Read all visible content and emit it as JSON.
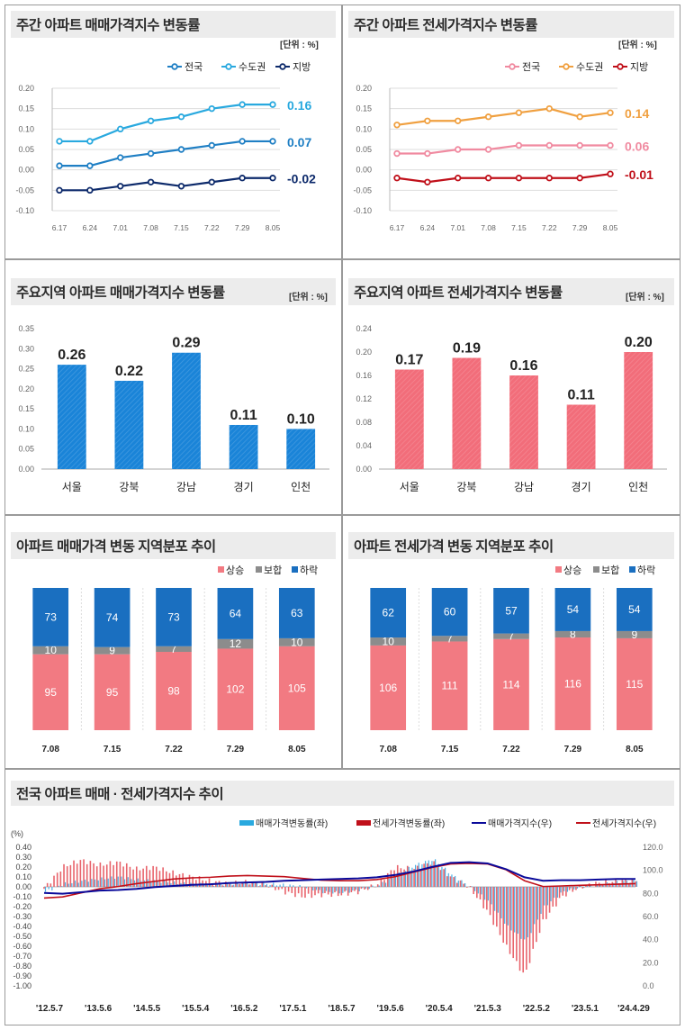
{
  "panels": {
    "p1": {
      "title": "주간 아파트 매매가격지수 변동률",
      "unit": "[단위 : %]"
    },
    "p2": {
      "title": "주간 아파트 전세가격지수 변동률",
      "unit": "[단위 : %]"
    },
    "p3": {
      "title": "주요지역 아파트 매매가격지수 변동률",
      "unit": "[단위 : %]"
    },
    "p4": {
      "title": "주요지역 아파트 전세가격지수 변동률",
      "unit": "[단위 : %]"
    },
    "p5": {
      "title": "아파트 매매가격 변동 지역분포 추이"
    },
    "p6": {
      "title": "아파트 전세가격 변동 지역분포 추이"
    },
    "p7": {
      "title": "전국 아파트 매매 · 전세가격지수 추이"
    }
  },
  "colors": {
    "sale_nat": "#1f7fc4",
    "sale_cap": "#29a9df",
    "sale_loc": "#0d2a6b",
    "rent_nat": "#f08aa0",
    "rent_cap": "#f0a040",
    "rent_loc": "#c0101a",
    "blue_bar": "#1a84d8",
    "red_bar": "#f26d7a",
    "up": "#f27a82",
    "flat": "#8c8c8c",
    "down": "#1a6fc0"
  },
  "chart_data": [
    {
      "id": "weekly_sale",
      "type": "line",
      "x": [
        "6.17",
        "6.24",
        "7.01",
        "7.08",
        "7.15",
        "7.22",
        "7.29",
        "8.05"
      ],
      "series": [
        {
          "name": "전국",
          "values": [
            0.01,
            0.01,
            0.03,
            0.04,
            0.05,
            0.06,
            0.07,
            0.07
          ],
          "end_label": "0.07"
        },
        {
          "name": "수도권",
          "values": [
            0.07,
            0.07,
            0.1,
            0.12,
            0.13,
            0.15,
            0.16,
            0.16
          ],
          "end_label": "0.16"
        },
        {
          "name": "지방",
          "values": [
            -0.05,
            -0.05,
            -0.04,
            -0.03,
            -0.04,
            -0.03,
            -0.02,
            -0.02
          ],
          "end_label": "-0.02"
        }
      ],
      "ylim": [
        -0.1,
        0.2
      ],
      "yticks": [
        "0.20",
        "0.15",
        "0.10",
        "0.05",
        "0.00",
        "-0.05",
        "-0.10"
      ]
    },
    {
      "id": "weekly_rent",
      "type": "line",
      "x": [
        "6.17",
        "6.24",
        "7.01",
        "7.08",
        "7.15",
        "7.22",
        "7.29",
        "8.05"
      ],
      "series": [
        {
          "name": "전국",
          "values": [
            0.04,
            0.04,
            0.05,
            0.05,
            0.06,
            0.06,
            0.06,
            0.06
          ],
          "end_label": "0.06"
        },
        {
          "name": "수도권",
          "values": [
            0.11,
            0.12,
            0.12,
            0.13,
            0.14,
            0.15,
            0.13,
            0.14
          ],
          "end_label": "0.14"
        },
        {
          "name": "지방",
          "values": [
            -0.02,
            -0.03,
            -0.02,
            -0.02,
            -0.02,
            -0.02,
            -0.02,
            -0.01
          ],
          "end_label": "-0.01"
        }
      ],
      "ylim": [
        -0.1,
        0.2
      ],
      "yticks": [
        "0.20",
        "0.15",
        "0.10",
        "0.05",
        "0.00",
        "-0.05",
        "-0.10"
      ]
    },
    {
      "id": "region_sale",
      "type": "bar",
      "categories": [
        "서울",
        "강북",
        "강남",
        "경기",
        "인천"
      ],
      "values": [
        0.26,
        0.22,
        0.29,
        0.11,
        0.1
      ],
      "labels": [
        "0.26",
        "0.22",
        "0.29",
        "0.11",
        "0.10"
      ],
      "ylim": [
        0,
        0.35
      ],
      "yticks": [
        "0.35",
        "0.30",
        "0.25",
        "0.20",
        "0.15",
        "0.10",
        "0.05",
        "0.00"
      ]
    },
    {
      "id": "region_rent",
      "type": "bar",
      "categories": [
        "서울",
        "강북",
        "강남",
        "경기",
        "인천"
      ],
      "values": [
        0.17,
        0.19,
        0.16,
        0.11,
        0.2
      ],
      "labels": [
        "0.17",
        "0.19",
        "0.16",
        "0.11",
        "0.20"
      ],
      "ylim": [
        0,
        0.24
      ],
      "yticks": [
        "0.24",
        "0.20",
        "0.16",
        "0.12",
        "0.08",
        "0.04",
        "0.00"
      ]
    },
    {
      "id": "dist_sale",
      "type": "bar",
      "stacked": true,
      "categories": [
        "7.08",
        "7.15",
        "7.22",
        "7.29",
        "8.05"
      ],
      "legend": [
        "상승",
        "보합",
        "하락"
      ],
      "series": [
        {
          "name": "상승",
          "values": [
            95,
            95,
            98,
            102,
            105
          ]
        },
        {
          "name": "보합",
          "values": [
            10,
            9,
            7,
            12,
            10
          ]
        },
        {
          "name": "하락",
          "values": [
            73,
            74,
            73,
            64,
            63
          ]
        }
      ]
    },
    {
      "id": "dist_rent",
      "type": "bar",
      "stacked": true,
      "categories": [
        "7.08",
        "7.15",
        "7.22",
        "7.29",
        "8.05"
      ],
      "legend": [
        "상승",
        "보합",
        "하락"
      ],
      "series": [
        {
          "name": "상승",
          "values": [
            106,
            111,
            114,
            116,
            115
          ]
        },
        {
          "name": "보합",
          "values": [
            10,
            7,
            7,
            8,
            9
          ]
        },
        {
          "name": "하락",
          "values": [
            62,
            60,
            57,
            54,
            54
          ]
        }
      ]
    },
    {
      "id": "long_trend",
      "type": "line",
      "legend": [
        "매매가격변동률(좌)",
        "전세가격변동률(좌)",
        "매매가격지수(우)",
        "전세가격지수(우)"
      ],
      "left_unit": "(%)",
      "left_ticks": [
        "0.40",
        "0.30",
        "0.20",
        "0.10",
        "0.00",
        "-0.10",
        "-0.20",
        "-0.30",
        "-0.40",
        "-0.50",
        "-0.60",
        "-0.70",
        "-0.80",
        "-0.90",
        "-1.00"
      ],
      "right_ticks": [
        "120.0",
        "100.0",
        "80.0",
        "60.0",
        "40.0",
        "20.0",
        "0.0"
      ],
      "x_labels": [
        "'12.5.7",
        "'13.5.6",
        "'14.5.5",
        "'15.5.4",
        "'16.5.2",
        "'17.5.1",
        "'18.5.7",
        "'19.5.6",
        "'20.5.4",
        "'21.5.3",
        "'22.5.2",
        "'23.5.1",
        "'24.4.29"
      ],
      "ylim_left": [
        -1.0,
        0.4
      ],
      "ylim_right": [
        0,
        120
      ],
      "sale_index": [
        80.5,
        79.8,
        81.0,
        82.5,
        83.0,
        84.0,
        85.5,
        86.5,
        87.5,
        88.0,
        89.0,
        89.5,
        90.0,
        91.0,
        91.5,
        92.0,
        92.5,
        93.0,
        94.0,
        96.0,
        99.0,
        103.0,
        106.5,
        107.0,
        106.0,
        101.0,
        94.0,
        91.0,
        91.5,
        91.5,
        92.0,
        92.5,
        92.5
      ],
      "rent_index": [
        76.0,
        77.0,
        80.5,
        84.0,
        86.0,
        88.5,
        90.5,
        92.5,
        93.5,
        94.0,
        95.0,
        95.5,
        95.0,
        94.5,
        93.0,
        91.5,
        91.0,
        91.0,
        92.0,
        94.5,
        98.5,
        102.5,
        105.5,
        106.0,
        105.5,
        100.5,
        91.0,
        86.0,
        86.5,
        87.0,
        87.5,
        88.0,
        88.5
      ],
      "sale_rate": [
        -0.05,
        0.03,
        0.06,
        0.08,
        0.1,
        0.07,
        0.06,
        0.04,
        0.03,
        0.02,
        0.03,
        0.04,
        0.03,
        0.02,
        0.0,
        -0.05,
        -0.06,
        -0.03,
        0.01,
        0.12,
        0.22,
        0.28,
        0.12,
        0.0,
        -0.15,
        -0.4,
        -0.55,
        -0.2,
        -0.05,
        0.0,
        0.02,
        0.05,
        0.06
      ],
      "rent_rate": [
        -0.02,
        0.2,
        0.27,
        0.22,
        0.25,
        0.18,
        0.2,
        0.14,
        0.1,
        0.06,
        0.03,
        0.05,
        0.02,
        -0.05,
        -0.1,
        -0.08,
        -0.08,
        -0.05,
        0.02,
        0.2,
        0.18,
        0.25,
        0.1,
        0.0,
        -0.25,
        -0.6,
        -0.9,
        -0.35,
        -0.1,
        0.0,
        0.04,
        0.06,
        0.06
      ]
    }
  ]
}
